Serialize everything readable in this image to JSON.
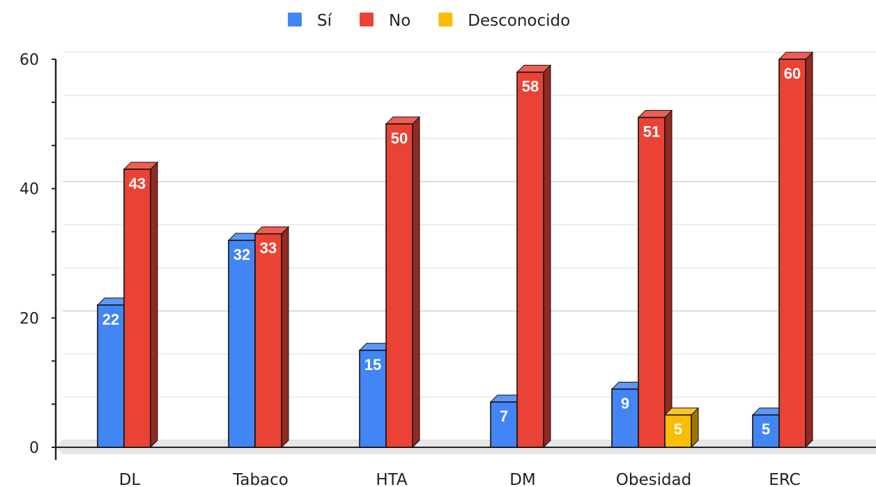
{
  "chart_data": {
    "type": "bar",
    "categories": [
      "DL",
      "Tabaco",
      "HTA",
      "DM",
      "Obesidad",
      "ERC"
    ],
    "series": [
      {
        "name": "Sí",
        "color": "#4285f4",
        "values": [
          22,
          32,
          15,
          7,
          9,
          5
        ]
      },
      {
        "name": "No",
        "color": "#ea4335",
        "values": [
          43,
          33,
          50,
          58,
          51,
          60
        ]
      },
      {
        "name": "Desconocido",
        "color": "#fbbc04",
        "values": [
          null,
          null,
          null,
          null,
          5,
          null
        ]
      }
    ],
    "yticks": [
      "0",
      "20",
      "40",
      "60"
    ],
    "ylim": [
      0,
      60
    ],
    "legend_position": "top",
    "grid": true,
    "style": "3d"
  }
}
